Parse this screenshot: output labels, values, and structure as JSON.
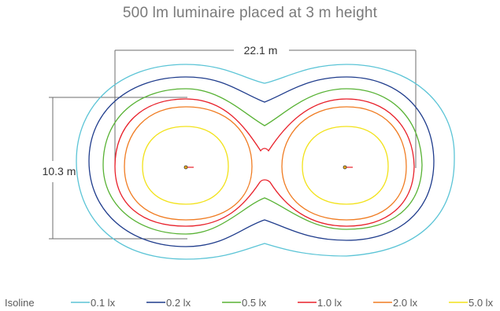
{
  "title": "500 lm luminaire placed at 3 m height",
  "dimensions": {
    "width_label": "22.1 m",
    "height_label": "10.3 m"
  },
  "isolines": [
    {
      "label": "0.1 lx",
      "color": "#5bc4d6"
    },
    {
      "label": "0.2 lx",
      "color": "#1f3c8c"
    },
    {
      "label": "0.5 lx",
      "color": "#58b234"
    },
    {
      "label": "1.0 lx",
      "color": "#e8202a"
    },
    {
      "label": "2.0 lx",
      "color": "#f07c22"
    },
    {
      "label": "5.0 lx",
      "color": "#f2e21a"
    }
  ],
  "legend": {
    "title": "Isoline"
  },
  "luminaire_color": "#e8202a"
}
